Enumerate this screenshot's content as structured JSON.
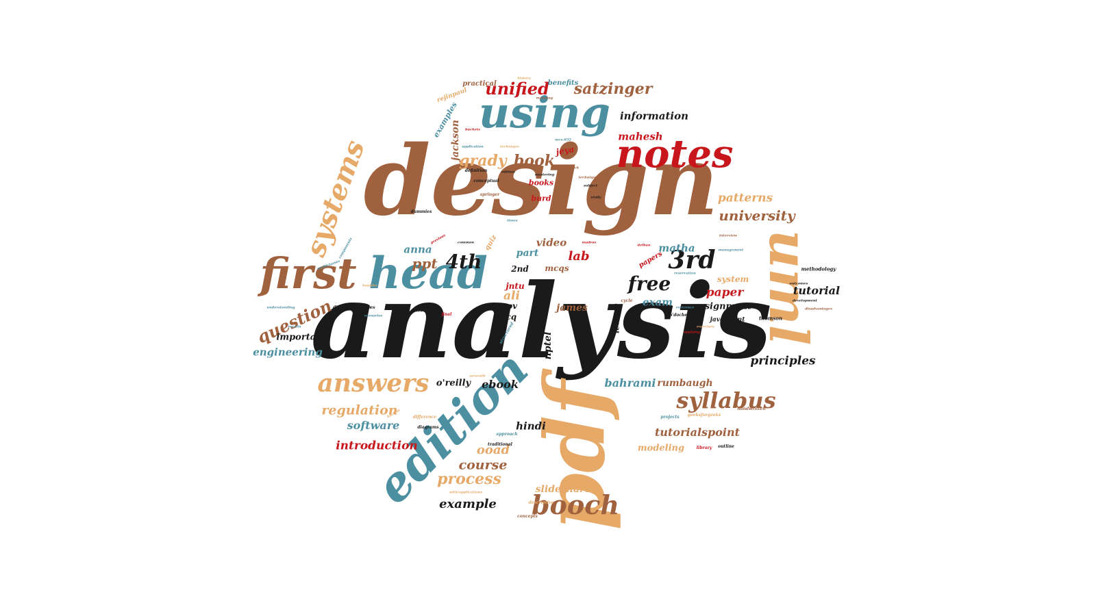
{
  "colors": {
    "brown": "#a0613f",
    "teal": "#4b8fa0",
    "tan": "#e6a968",
    "black": "#1a1a1a",
    "red": "#c8161d"
  },
  "words": [
    {
      "text": "analysis",
      "color": "black"
    },
    {
      "text": "design",
      "color": "brown"
    },
    {
      "text": "pdf",
      "color": "tan"
    },
    {
      "text": "edition",
      "color": "teal"
    },
    {
      "text": "uml",
      "color": "tan"
    },
    {
      "text": "using",
      "color": "teal"
    },
    {
      "text": "head",
      "color": "teal"
    },
    {
      "text": "first",
      "color": "brown"
    },
    {
      "text": "notes",
      "color": "red"
    },
    {
      "text": "systems",
      "color": "tan"
    },
    {
      "text": "answers",
      "color": "tan"
    },
    {
      "text": "syllabus",
      "color": "brown"
    },
    {
      "text": "booch",
      "color": "brown"
    },
    {
      "text": "4th",
      "color": "black"
    },
    {
      "text": "3rd",
      "color": "black"
    },
    {
      "text": "question",
      "color": "brown"
    },
    {
      "text": "free",
      "color": "black"
    },
    {
      "text": "unified",
      "color": "red"
    },
    {
      "text": "satzinger",
      "color": "brown"
    },
    {
      "text": "information",
      "color": "black"
    },
    {
      "text": "mahesh",
      "color": "red"
    },
    {
      "text": "grady",
      "color": "tan"
    },
    {
      "text": "book",
      "color": "brown"
    },
    {
      "text": "jackson",
      "color": "brown"
    },
    {
      "text": "patterns",
      "color": "tan"
    },
    {
      "text": "university",
      "color": "brown"
    },
    {
      "text": "tutorial",
      "color": "black"
    },
    {
      "text": "ppt",
      "color": "brown"
    },
    {
      "text": "anna",
      "color": "teal"
    },
    {
      "text": "matha",
      "color": "teal"
    },
    {
      "text": "video",
      "color": "brown"
    },
    {
      "text": "part",
      "color": "teal"
    },
    {
      "text": "lab",
      "color": "red"
    },
    {
      "text": "mcqs",
      "color": "brown"
    },
    {
      "text": "exam",
      "color": "teal"
    },
    {
      "text": "paper",
      "color": "red"
    },
    {
      "text": "system",
      "color": "tan"
    },
    {
      "text": "assignment",
      "color": "black"
    },
    {
      "text": "principles",
      "color": "black"
    },
    {
      "text": "engineering",
      "color": "teal"
    },
    {
      "text": "important",
      "color": "black"
    },
    {
      "text": "regulation",
      "color": "tan"
    },
    {
      "text": "software",
      "color": "teal"
    },
    {
      "text": "introduction",
      "color": "red"
    },
    {
      "text": "ebook",
      "color": "black"
    },
    {
      "text": "o'reilly",
      "color": "black"
    },
    {
      "text": "hindi",
      "color": "black"
    },
    {
      "text": "ooad",
      "color": "tan"
    },
    {
      "text": "course",
      "color": "brown"
    },
    {
      "text": "process",
      "color": "tan"
    },
    {
      "text": "example",
      "color": "black"
    },
    {
      "text": "slideshare",
      "color": "tan"
    },
    {
      "text": "bahrami",
      "color": "teal"
    },
    {
      "text": "rumbaugh",
      "color": "brown"
    },
    {
      "text": "tutorialspoint",
      "color": "brown"
    },
    {
      "text": "modeling",
      "color": "tan"
    },
    {
      "text": "nptel",
      "color": "black"
    },
    {
      "text": "james",
      "color": "brown"
    },
    {
      "text": "jntu",
      "color": "red"
    },
    {
      "text": "ali",
      "color": "tan"
    },
    {
      "text": "rgpv",
      "color": "black"
    },
    {
      "text": "mcq",
      "color": "black"
    },
    {
      "text": "2nd",
      "color": "black"
    },
    {
      "text": "lecture",
      "color": "black"
    },
    {
      "text": "practical",
      "color": "brown"
    },
    {
      "text": "benefits",
      "color": "teal"
    },
    {
      "text": "rejinpaul",
      "color": "tan"
    },
    {
      "text": "examples",
      "color": "teal"
    },
    {
      "text": "jeya",
      "color": "red"
    },
    {
      "text": "books",
      "color": "red"
    },
    {
      "text": "burd",
      "color": "red"
    },
    {
      "text": "quiz",
      "color": "tan"
    },
    {
      "text": "papers",
      "color": "red"
    },
    {
      "text": "javatpoint",
      "color": "black"
    },
    {
      "text": "thomson",
      "color": "black"
    },
    {
      "text": "methodology",
      "color": "black"
    },
    {
      "text": "lectures",
      "color": "black"
    },
    {
      "text": "diagram",
      "color": "black"
    },
    {
      "text": "definition",
      "color": "black"
    },
    {
      "text": "conceptual",
      "color": "black"
    },
    {
      "text": "springer",
      "color": "brown"
    },
    {
      "text": "dummies",
      "color": "black"
    },
    {
      "text": "understanding",
      "color": "teal"
    },
    {
      "text": "difference",
      "color": "tan"
    },
    {
      "text": "diagrams",
      "color": "black"
    },
    {
      "text": "approach",
      "color": "teal"
    },
    {
      "text": "traditional",
      "color": "black"
    },
    {
      "text": "concepts",
      "color": "brown"
    },
    {
      "text": "descriptive",
      "color": "tan"
    },
    {
      "text": "projects",
      "color": "teal"
    },
    {
      "text": "geeksforgeeks",
      "color": "tan"
    },
    {
      "text": "library",
      "color": "red"
    },
    {
      "text": "outline",
      "color": "black"
    },
    {
      "text": "handwritten",
      "color": "brown"
    },
    {
      "text": "development",
      "color": "black"
    },
    {
      "text": "disadvantages",
      "color": "brown"
    },
    {
      "text": "outcomes",
      "color": "black"
    },
    {
      "text": "interview",
      "color": "brown"
    },
    {
      "text": "management",
      "color": "teal"
    },
    {
      "text": "reservation",
      "color": "teal"
    },
    {
      "text": "cycle",
      "color": "brown"
    },
    {
      "text": "reference",
      "color": "teal"
    },
    {
      "text": "o'docherty",
      "color": "black"
    },
    {
      "text": "exercises",
      "color": "tan"
    },
    {
      "text": "applying",
      "color": "red"
    },
    {
      "text": "meaning",
      "color": "brown"
    },
    {
      "text": "history",
      "color": "tan"
    },
    {
      "text": "application",
      "color": "teal"
    },
    {
      "text": "technique",
      "color": "tan"
    },
    {
      "text": "research",
      "color": "brown"
    },
    {
      "text": "techniques",
      "color": "brown"
    },
    {
      "text": "subject",
      "color": "black"
    },
    {
      "text": "study",
      "color": "black"
    },
    {
      "text": "mastering",
      "color": "black"
    },
    {
      "text": "edition",
      "color": "black"
    },
    {
      "text": "mcs-032",
      "color": "teal"
    },
    {
      "text": "buckets",
      "color": "red"
    },
    {
      "text": "components",
      "color": "teal"
    },
    {
      "text": "boulder",
      "color": "tan"
    },
    {
      "text": "scenarios",
      "color": "teal"
    },
    {
      "text": "lectures",
      "color": "black"
    },
    {
      "text": "know",
      "color": "black"
    },
    {
      "text": "final",
      "color": "red"
    },
    {
      "text": "madras",
      "color": "red"
    },
    {
      "text": "common",
      "color": "black"
    },
    {
      "text": "previous",
      "color": "red"
    },
    {
      "text": "hackett",
      "color": "tan"
    },
    {
      "text": "sarsvath",
      "color": "tan"
    },
    {
      "text": "structured",
      "color": "teal"
    },
    {
      "text": "times",
      "color": "teal"
    },
    {
      "text": "delhan",
      "color": "red"
    },
    {
      "text": "martin",
      "color": "teal"
    },
    {
      "text": "with/applications",
      "color": "tan"
    },
    {
      "text": "multiclasses",
      "color": "teal"
    }
  ]
}
